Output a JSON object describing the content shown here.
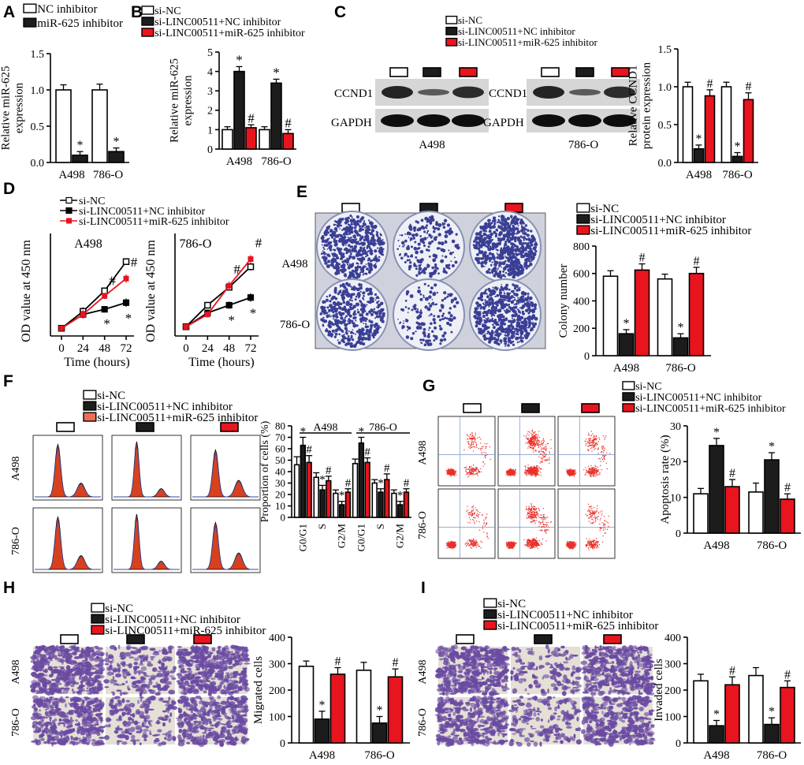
{
  "colors": {
    "white": "#ffffff",
    "black": "#1c1c1c",
    "red": "#e8141e",
    "salmon": "#f06e55",
    "dish": "#eef0f6",
    "colony": "#3a3f95",
    "stain": "#6a4aa2",
    "flow": "#e8302a",
    "peak": "#d8401e"
  },
  "legends": {
    "two": [
      "NC inhibitor",
      "miR-625 inhibitor"
    ],
    "three": [
      "si-NC",
      "si-LINC00511+NC inhibitor",
      "si-LINC00511+miR-625 inhibitor"
    ]
  },
  "panels": {
    "A": {
      "letter": "A"
    },
    "B": {
      "letter": "B"
    },
    "C": {
      "letter": "C",
      "blot_left_label": "A498",
      "blot_right_label": "786-O",
      "band_top": "CCND1",
      "band_bottom": "GAPDH"
    },
    "D": {
      "letter": "D",
      "left_title": "A498",
      "right_title": "786-O"
    },
    "E": {
      "letter": "E",
      "row_labels": [
        "A498",
        "786-O"
      ]
    },
    "F": {
      "letter": "F",
      "row_labels": [
        "A498",
        "786-O"
      ],
      "group_labels": [
        "A498",
        "786-O"
      ]
    },
    "G": {
      "letter": "G",
      "row_labels": [
        "A498",
        "786-O"
      ]
    },
    "H": {
      "letter": "H",
      "row_labels": [
        "A498",
        "786-O"
      ]
    },
    "I": {
      "letter": "I",
      "row_labels": [
        "A498",
        "786-O"
      ]
    }
  },
  "chart_data": [
    {
      "panel": "A",
      "type": "bar",
      "ylabel": "Relative miR-625\nexpression",
      "categories": [
        "A498",
        "786-O"
      ],
      "ylim": [
        0,
        1.5
      ],
      "yticks": [
        "0.0",
        "0.5",
        "1.0",
        "1.5"
      ],
      "series": [
        {
          "name": "NC inhibitor",
          "values": [
            1.0,
            1.0
          ],
          "errors": [
            0.07,
            0.08
          ],
          "marks": [
            "",
            ""
          ]
        },
        {
          "name": "miR-625 inhibitor",
          "values": [
            0.1,
            0.15
          ],
          "errors": [
            0.05,
            0.05
          ],
          "marks": [
            "*",
            "*"
          ]
        }
      ]
    },
    {
      "panel": "B",
      "type": "bar",
      "ylabel": "Relative miR-625\nexpression",
      "categories": [
        "A498",
        "786-O"
      ],
      "ylim": [
        0,
        5
      ],
      "yticks": [
        "0",
        "1",
        "2",
        "3",
        "4",
        "5"
      ],
      "series": [
        {
          "name": "si-NC",
          "values": [
            1.0,
            1.0
          ],
          "errors": [
            0.15,
            0.15
          ],
          "marks": [
            "",
            ""
          ]
        },
        {
          "name": "si-LINC00511+NC inhibitor",
          "values": [
            4.0,
            3.4
          ],
          "errors": [
            0.25,
            0.2
          ],
          "marks": [
            "*",
            "*"
          ]
        },
        {
          "name": "si-LINC00511+miR-625 inhibitor",
          "values": [
            1.1,
            0.8
          ],
          "errors": [
            0.15,
            0.2
          ],
          "marks": [
            "#",
            "#"
          ]
        }
      ]
    },
    {
      "panel": "C",
      "type": "bar",
      "ylabel": "Relative CCND1\nprotein expression",
      "categories": [
        "A498",
        "786-O"
      ],
      "ylim": [
        0,
        1.5
      ],
      "yticks": [
        "0.0",
        "0.5",
        "1.0",
        "1.5"
      ],
      "series": [
        {
          "name": "si-NC",
          "values": [
            1.0,
            1.0
          ],
          "errors": [
            0.06,
            0.06
          ],
          "marks": [
            "",
            ""
          ]
        },
        {
          "name": "si-LINC00511+NC inhibitor",
          "values": [
            0.18,
            0.08
          ],
          "errors": [
            0.05,
            0.05
          ],
          "marks": [
            "*",
            "*"
          ]
        },
        {
          "name": "si-LINC00511+miR-625 inhibitor",
          "values": [
            0.88,
            0.83
          ],
          "errors": [
            0.08,
            0.09
          ],
          "marks": [
            "#",
            "#"
          ]
        }
      ]
    },
    {
      "panel": "D-A498",
      "type": "line",
      "xlabel": "Time (hours)",
      "ylabel": "OD value at 450 nm",
      "x": [
        0,
        24,
        48,
        72
      ],
      "xticks": [
        "0",
        "24",
        "48",
        "72"
      ],
      "ylim": [
        0,
        2.0
      ],
      "series": [
        {
          "name": "si-NC",
          "values": [
            0.15,
            0.48,
            0.88,
            1.45
          ],
          "errors": [
            0.04,
            0.08,
            0.06,
            0.06
          ],
          "marks": [
            "",
            "",
            "",
            ""
          ]
        },
        {
          "name": "si-LINC00511+NC inhibitor",
          "values": [
            0.15,
            0.42,
            0.52,
            0.65
          ],
          "errors": [
            0.04,
            0.08,
            0.06,
            0.08
          ],
          "marks": [
            "",
            "",
            "*",
            "*"
          ]
        },
        {
          "name": "si-LINC00511+miR-625 inhibitor",
          "values": [
            0.15,
            0.42,
            0.78,
            1.12
          ],
          "errors": [
            0.04,
            0.08,
            0.06,
            0.08
          ],
          "marks": [
            "",
            "",
            "#",
            "#"
          ]
        }
      ]
    },
    {
      "panel": "D-786-O",
      "type": "line",
      "xlabel": "Time (hours)",
      "ylabel": "OD value at 450 nm",
      "x": [
        0,
        24,
        48,
        72
      ],
      "xticks": [
        "0",
        "24",
        "48",
        "72"
      ],
      "ylim": [
        0,
        2.0
      ],
      "series": [
        {
          "name": "si-NC",
          "values": [
            0.18,
            0.6,
            0.95,
            1.35
          ],
          "errors": [
            0.04,
            0.06,
            0.06,
            0.07
          ],
          "marks": [
            "",
            "",
            "",
            ""
          ]
        },
        {
          "name": "si-LINC00511+NC inhibitor",
          "values": [
            0.18,
            0.45,
            0.6,
            0.75
          ],
          "errors": [
            0.04,
            0.06,
            0.07,
            0.08
          ],
          "marks": [
            "",
            "",
            "*",
            "*"
          ]
        },
        {
          "name": "si-LINC00511+miR-625 inhibitor",
          "values": [
            0.18,
            0.42,
            0.98,
            1.5
          ],
          "errors": [
            0.04,
            0.06,
            0.08,
            0.08
          ],
          "marks": [
            "",
            "",
            "#",
            "#"
          ]
        }
      ]
    },
    {
      "panel": "E",
      "type": "bar",
      "ylabel": "Colony number",
      "categories": [
        "A498",
        "786-O"
      ],
      "ylim": [
        0,
        800
      ],
      "yticks": [
        "0",
        "200",
        "400",
        "600",
        "800"
      ],
      "series": [
        {
          "name": "si-NC",
          "values": [
            580,
            560
          ],
          "errors": [
            40,
            35
          ],
          "marks": [
            "",
            ""
          ]
        },
        {
          "name": "si-LINC00511+NC inhibitor",
          "values": [
            160,
            130
          ],
          "errors": [
            30,
            30
          ],
          "marks": [
            "*",
            "*"
          ]
        },
        {
          "name": "si-LINC00511+miR-625 inhibitor",
          "values": [
            625,
            600
          ],
          "errors": [
            45,
            45
          ],
          "marks": [
            "#",
            "#"
          ]
        }
      ]
    },
    {
      "panel": "F",
      "type": "bar",
      "ylabel": "Proportion of cells (%)",
      "categories": [
        "G0/G1",
        "S",
        "G2/M",
        "G0/G1",
        "S",
        "G2/M"
      ],
      "ylim": [
        0,
        80
      ],
      "yticks": [
        "0",
        "10",
        "20",
        "30",
        "40",
        "50",
        "60",
        "70",
        "80"
      ],
      "series": [
        {
          "name": "si-NC",
          "values": [
            46,
            35,
            21,
            47,
            30,
            21
          ],
          "errors": [
            7,
            4,
            3,
            4,
            3,
            3
          ],
          "marks": [
            "",
            "",
            "",
            "",
            "",
            ""
          ]
        },
        {
          "name": "si-LINC00511+NC inhibitor",
          "values": [
            63,
            24,
            11,
            65,
            22,
            11
          ],
          "errors": [
            7,
            4,
            3,
            5,
            3,
            3
          ],
          "marks": [
            "*",
            "*",
            "*",
            "*",
            "*",
            "*"
          ]
        },
        {
          "name": "si-LINC00511+miR-625 inhibitor",
          "values": [
            48,
            32,
            22,
            48,
            33,
            22
          ],
          "errors": [
            6,
            4,
            3,
            4,
            5,
            3
          ],
          "marks": [
            "#",
            "#",
            "#",
            "#",
            "#",
            "#"
          ]
        }
      ]
    },
    {
      "panel": "G",
      "type": "bar",
      "ylabel": "Apoptosis rate (%)",
      "categories": [
        "A498",
        "786-O"
      ],
      "ylim": [
        0,
        30
      ],
      "yticks": [
        "0",
        "10",
        "20",
        "30"
      ],
      "series": [
        {
          "name": "si-NC",
          "values": [
            11,
            11.5
          ],
          "errors": [
            1.5,
            2.5
          ],
          "marks": [
            "",
            ""
          ]
        },
        {
          "name": "si-LINC00511+NC inhibitor",
          "values": [
            24.5,
            20.5
          ],
          "errors": [
            2.0,
            2.0
          ],
          "marks": [
            "*",
            "*"
          ]
        },
        {
          "name": "si-LINC00511+miR-625 inhibitor",
          "values": [
            13,
            9.5
          ],
          "errors": [
            2.0,
            1.5
          ],
          "marks": [
            "#",
            "#"
          ]
        }
      ]
    },
    {
      "panel": "H",
      "type": "bar",
      "ylabel": "Migrated cells",
      "categories": [
        "A498",
        "786-O"
      ],
      "ylim": [
        0,
        400
      ],
      "yticks": [
        "0",
        "100",
        "200",
        "300",
        "400"
      ],
      "series": [
        {
          "name": "si-NC",
          "values": [
            290,
            275
          ],
          "errors": [
            20,
            30
          ],
          "marks": [
            "",
            ""
          ]
        },
        {
          "name": "si-LINC00511+NC inhibitor",
          "values": [
            90,
            75
          ],
          "errors": [
            30,
            25
          ],
          "marks": [
            "*",
            "*"
          ]
        },
        {
          "name": "si-LINC00511+miR-625 inhibitor",
          "values": [
            260,
            250
          ],
          "errors": [
            25,
            30
          ],
          "marks": [
            "#",
            "#"
          ]
        }
      ]
    },
    {
      "panel": "I",
      "type": "bar",
      "ylabel": "Invaded cells",
      "categories": [
        "A498",
        "786-O"
      ],
      "ylim": [
        0,
        400
      ],
      "yticks": [
        "0",
        "100",
        "200",
        "300",
        "400"
      ],
      "series": [
        {
          "name": "si-NC",
          "values": [
            235,
            255
          ],
          "errors": [
            25,
            30
          ],
          "marks": [
            "",
            ""
          ]
        },
        {
          "name": "si-LINC00511+NC inhibitor",
          "values": [
            65,
            70
          ],
          "errors": [
            20,
            25
          ],
          "marks": [
            "*",
            "*"
          ]
        },
        {
          "name": "si-LINC00511+miR-625 inhibitor",
          "values": [
            220,
            210
          ],
          "errors": [
            30,
            25
          ],
          "marks": [
            "#",
            "#"
          ]
        }
      ]
    }
  ]
}
